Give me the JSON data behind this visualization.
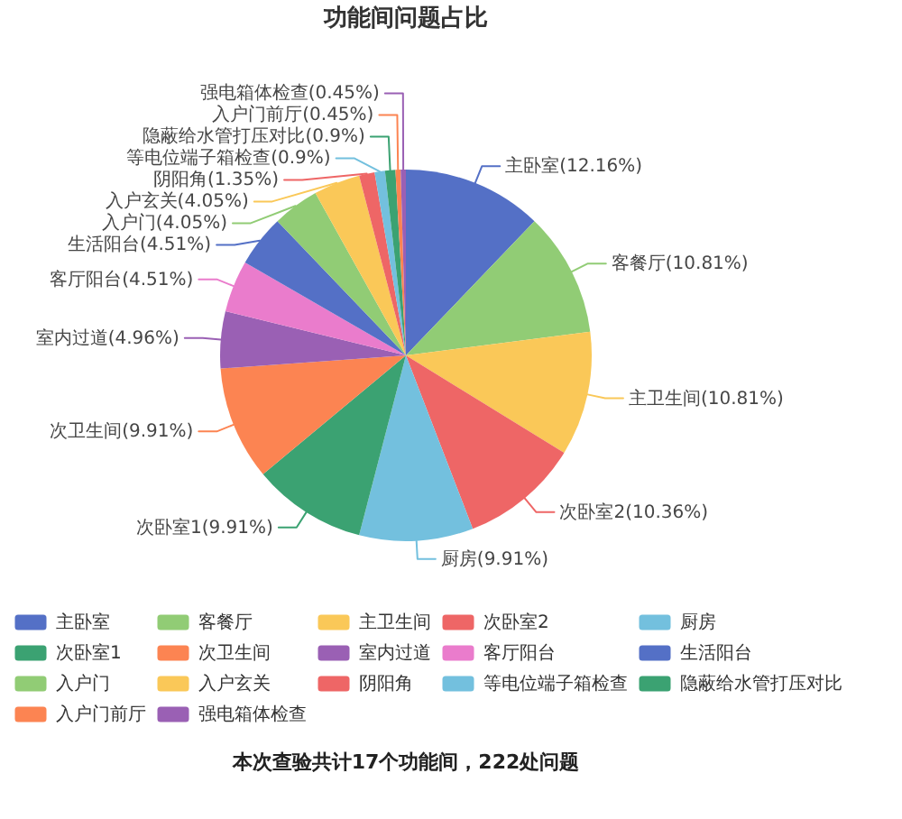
{
  "chart_data": {
    "type": "pie",
    "title": "功能间问题占比",
    "categories": [
      "主卧室",
      "客餐厅",
      "主卫生间",
      "次卧室2",
      "厨房",
      "次卧室1",
      "次卫生间",
      "室内过道",
      "客厅阳台",
      "生活阳台",
      "入户门",
      "入户玄关",
      "阴阳角",
      "等电位端子箱检查",
      "隐蔽给水管打压对比",
      "入户门前厅",
      "强电箱体检查"
    ],
    "values": [
      12.16,
      10.81,
      10.81,
      10.36,
      9.91,
      9.91,
      9.91,
      4.96,
      4.51,
      4.51,
      4.05,
      4.05,
      1.35,
      0.9,
      0.9,
      0.45,
      0.45
    ],
    "colors": [
      "#5470c6",
      "#91cc75",
      "#fac858",
      "#ee6666",
      "#73c0de",
      "#3ba272",
      "#fc8452",
      "#9a60b4",
      "#ea7ccc",
      "#5470c6",
      "#91cc75",
      "#fac858",
      "#ee6666",
      "#73c0de",
      "#3ba272",
      "#fc8452",
      "#9a60b4"
    ],
    "value_labels": [
      "主卧室(12.16%)",
      "客餐厅(10.81%)",
      "主卫生间(10.81%)",
      "次卧室2(10.36%)",
      "厨房(9.91%)",
      "次卧室1(9.91%)",
      "次卫生间(9.91%)",
      "室内过道(4.96%)",
      "客厅阳台(4.51%)",
      "生活阳台(4.51%)",
      "入户门(4.05%)",
      "入户玄关(4.05%)",
      "阴阳角(1.35%)",
      "等电位端子箱检查(0.9%)",
      "隐蔽给水管打压对比(0.9%)",
      "入户门前厅(0.45%)",
      "强电箱体检查(0.45%)"
    ],
    "legend": "bottom",
    "annotations": [
      "本次查验共计17个功能间，222处问题"
    ]
  }
}
